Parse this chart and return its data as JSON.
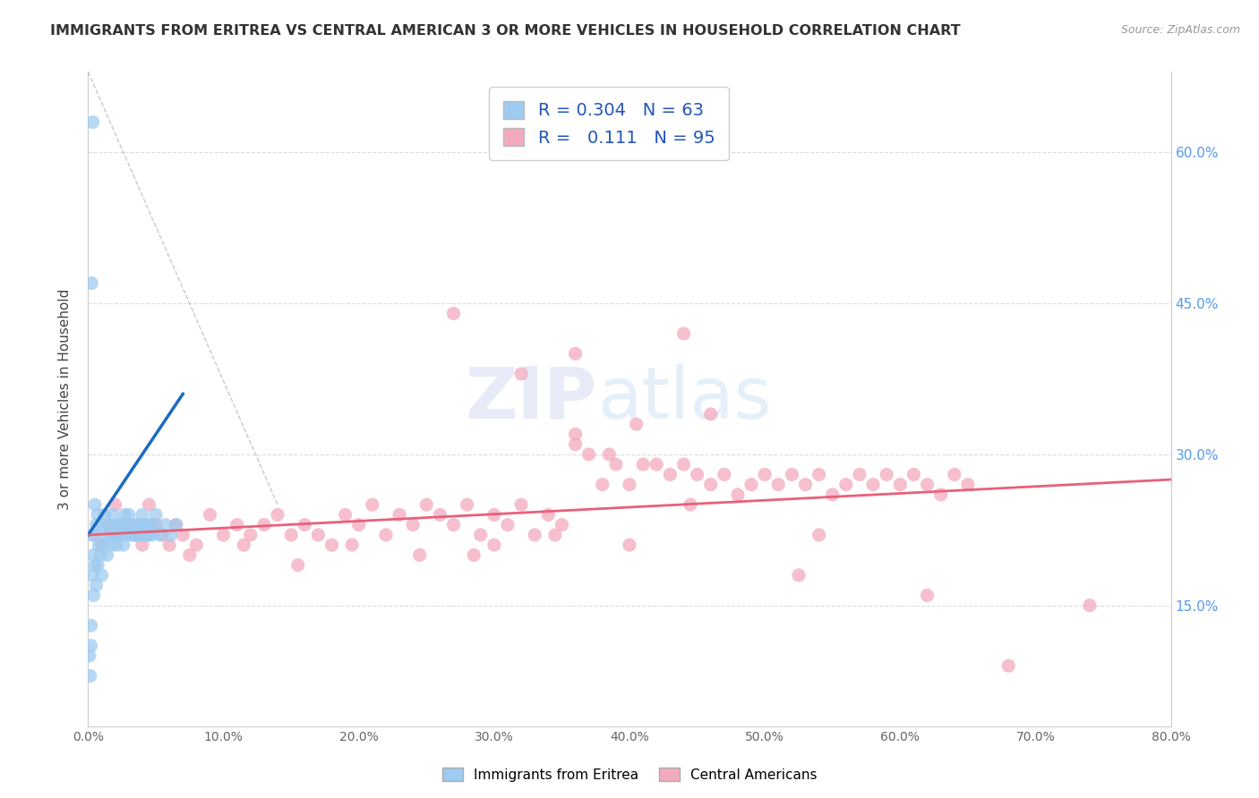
{
  "title": "IMMIGRANTS FROM ERITREA VS CENTRAL AMERICAN 3 OR MORE VEHICLES IN HOUSEHOLD CORRELATION CHART",
  "source": "Source: ZipAtlas.com",
  "ylabel": "3 or more Vehicles in Household",
  "R_blue": 0.304,
  "N_blue": 63,
  "R_pink": 0.111,
  "N_pink": 95,
  "blue_color": "#9ECBF0",
  "pink_color": "#F4AABE",
  "blue_line_color": "#1A6BC4",
  "pink_line_color": "#E8607A",
  "diag_color": "#BBBBCC",
  "legend_label_blue": "Immigrants from Eritrea",
  "legend_label_pink": "Central Americans",
  "xmin": 0.0,
  "xmax": 80.0,
  "ymin": 3.0,
  "ymax": 68.0,
  "yticks": [
    15.0,
    30.0,
    45.0,
    60.0
  ],
  "xticks": [
    0,
    10,
    20,
    30,
    40,
    50,
    60,
    70,
    80
  ],
  "blue_x": [
    0.1,
    0.15,
    0.2,
    0.2,
    0.3,
    0.3,
    0.4,
    0.4,
    0.5,
    0.5,
    0.6,
    0.6,
    0.7,
    0.7,
    0.8,
    0.9,
    1.0,
    1.0,
    1.1,
    1.2,
    1.3,
    1.4,
    1.5,
    1.6,
    1.7,
    1.8,
    1.9,
    2.0,
    2.1,
    2.2,
    2.3,
    2.4,
    2.5,
    2.6,
    2.7,
    2.8,
    2.9,
    3.0,
    3.1,
    3.2,
    3.3,
    3.4,
    3.5,
    3.6,
    3.7,
    3.8,
    3.9,
    4.0,
    4.1,
    4.2,
    4.3,
    4.4,
    4.5,
    4.6,
    4.7,
    4.8,
    5.0,
    5.3,
    5.7,
    6.1,
    6.5,
    0.25,
    0.35
  ],
  "blue_y": [
    10.0,
    8.0,
    13.0,
    11.0,
    22.0,
    18.0,
    20.0,
    16.0,
    25.0,
    19.0,
    23.0,
    17.0,
    24.0,
    19.0,
    21.0,
    20.0,
    23.0,
    18.0,
    21.0,
    24.0,
    22.0,
    20.0,
    23.0,
    22.0,
    21.0,
    24.0,
    22.0,
    23.0,
    21.0,
    23.0,
    22.0,
    22.0,
    23.0,
    21.0,
    24.0,
    22.0,
    23.0,
    24.0,
    22.0,
    23.0,
    22.0,
    23.0,
    22.0,
    22.0,
    23.0,
    22.0,
    23.0,
    24.0,
    22.0,
    23.0,
    22.0,
    23.0,
    22.0,
    23.0,
    22.0,
    23.0,
    24.0,
    22.0,
    23.0,
    22.0,
    23.0,
    47.0,
    63.0
  ],
  "pink_x": [
    0.5,
    1.0,
    1.5,
    2.0,
    2.5,
    3.0,
    3.5,
    4.0,
    4.5,
    5.0,
    5.5,
    6.0,
    6.5,
    7.0,
    8.0,
    9.0,
    10.0,
    11.0,
    12.0,
    13.0,
    14.0,
    15.0,
    16.0,
    17.0,
    18.0,
    19.0,
    20.0,
    21.0,
    22.0,
    23.0,
    24.0,
    25.0,
    26.0,
    27.0,
    28.0,
    29.0,
    30.0,
    31.0,
    32.0,
    33.0,
    34.0,
    35.0,
    36.0,
    37.0,
    38.0,
    39.0,
    40.0,
    41.0,
    42.0,
    43.0,
    44.0,
    45.0,
    46.0,
    47.0,
    48.0,
    49.0,
    50.0,
    51.0,
    52.0,
    53.0,
    54.0,
    55.0,
    56.0,
    57.0,
    58.0,
    59.0,
    60.0,
    61.0,
    62.0,
    63.0,
    64.0,
    65.0,
    7.5,
    11.5,
    15.5,
    19.5,
    24.5,
    28.5,
    34.5,
    38.5,
    44.5,
    52.5,
    27.0,
    32.0,
    36.0,
    40.5,
    44.0,
    36.0,
    46.0,
    54.0,
    62.0,
    68.0,
    74.0,
    30.0,
    40.0
  ],
  "pink_y": [
    22.0,
    21.0,
    23.0,
    25.0,
    22.0,
    23.0,
    22.0,
    21.0,
    25.0,
    23.0,
    22.0,
    21.0,
    23.0,
    22.0,
    21.0,
    24.0,
    22.0,
    23.0,
    22.0,
    23.0,
    24.0,
    22.0,
    23.0,
    22.0,
    21.0,
    24.0,
    23.0,
    25.0,
    22.0,
    24.0,
    23.0,
    25.0,
    24.0,
    23.0,
    25.0,
    22.0,
    24.0,
    23.0,
    25.0,
    22.0,
    24.0,
    23.0,
    31.0,
    30.0,
    27.0,
    29.0,
    27.0,
    29.0,
    29.0,
    28.0,
    29.0,
    28.0,
    27.0,
    28.0,
    26.0,
    27.0,
    28.0,
    27.0,
    28.0,
    27.0,
    28.0,
    26.0,
    27.0,
    28.0,
    27.0,
    28.0,
    27.0,
    28.0,
    27.0,
    26.0,
    28.0,
    27.0,
    20.0,
    21.0,
    19.0,
    21.0,
    20.0,
    20.0,
    22.0,
    30.0,
    25.0,
    18.0,
    44.0,
    38.0,
    40.0,
    33.0,
    42.0,
    32.0,
    34.0,
    22.0,
    16.0,
    9.0,
    15.0,
    21.0,
    21.0
  ]
}
